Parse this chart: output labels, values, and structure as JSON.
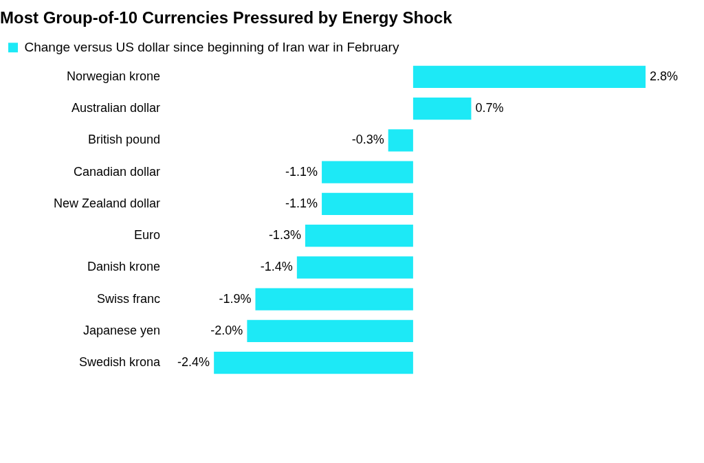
{
  "chart_data": {
    "type": "bar",
    "orientation": "horizontal",
    "title": "Most Group-of-10 Currencies Pressured by Energy Shock",
    "categories": [
      "Norwegian krone",
      "Australian dollar",
      "British pound",
      "Canadian dollar",
      "New Zealand dollar",
      "Euro",
      "Danish krone",
      "Swiss franc",
      "Japanese yen",
      "Swedish krona"
    ],
    "series": [
      {
        "name": "Change versus US dollar since beginning of Iran war in February",
        "color": "#1de9f6",
        "values": [
          2.8,
          0.7,
          -0.3,
          -1.1,
          -1.1,
          -1.3,
          -1.4,
          -1.9,
          -2.0,
          -2.4
        ],
        "value_labels": [
          "2.8%",
          "0.7%",
          "-0.3%",
          "-1.1%",
          "-1.1%",
          "-1.3%",
          "-1.4%",
          "-1.9%",
          "-2.0%",
          "-2.4%"
        ]
      }
    ],
    "legend": "top left"
  }
}
